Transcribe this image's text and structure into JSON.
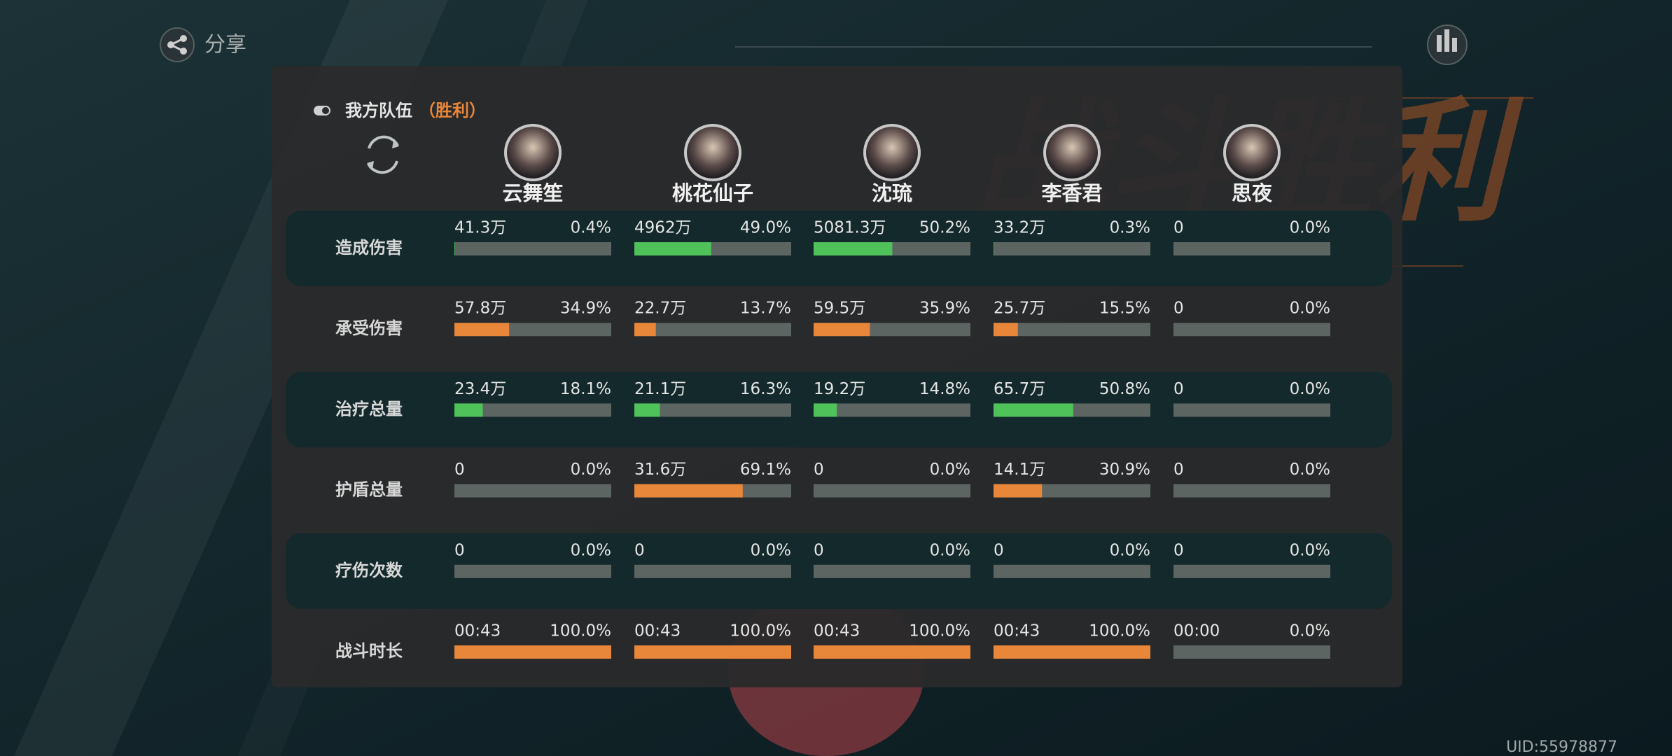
{
  "header": {
    "share": "分享",
    "uid": "UID:55978877",
    "background_title": "战斗胜利"
  },
  "team": {
    "title": "我方队伍",
    "result": "（胜利）"
  },
  "characters": [
    "云舞笙",
    "桃花仙子",
    "沈琉",
    "李香君",
    "思夜"
  ],
  "rows": [
    {
      "label": "造成伤害",
      "color": "#4fc35a",
      "cells": [
        {
          "value": "41.3万",
          "percent": 0.4,
          "percent_label": "0.4%"
        },
        {
          "value": "4962万",
          "percent": 49,
          "percent_label": "49.0%"
        },
        {
          "value": "5081.3万",
          "percent": 50.2,
          "percent_label": "50.2%"
        },
        {
          "value": "33.2万",
          "percent": 0.3,
          "percent_label": "0.3%"
        },
        {
          "value": "0",
          "percent": 0,
          "percent_label": "0.0%"
        }
      ]
    },
    {
      "label": "承受伤害",
      "color": "#e8863a",
      "cells": [
        {
          "value": "57.8万",
          "percent": 34.9,
          "percent_label": "34.9%"
        },
        {
          "value": "22.7万",
          "percent": 13.7,
          "percent_label": "13.7%"
        },
        {
          "value": "59.5万",
          "percent": 35.9,
          "percent_label": "35.9%"
        },
        {
          "value": "25.7万",
          "percent": 15.5,
          "percent_label": "15.5%"
        },
        {
          "value": "0",
          "percent": 0,
          "percent_label": "0.0%"
        }
      ]
    },
    {
      "label": "治疗总量",
      "color": "#4fc35a",
      "cells": [
        {
          "value": "23.4万",
          "percent": 18.1,
          "percent_label": "18.1%"
        },
        {
          "value": "21.1万",
          "percent": 16.3,
          "percent_label": "16.3%"
        },
        {
          "value": "19.2万",
          "percent": 14.8,
          "percent_label": "14.8%"
        },
        {
          "value": "65.7万",
          "percent": 50.8,
          "percent_label": "50.8%"
        },
        {
          "value": "0",
          "percent": 0,
          "percent_label": "0.0%"
        }
      ]
    },
    {
      "label": "护盾总量",
      "color": "#e8863a",
      "cells": [
        {
          "value": "0",
          "percent": 0,
          "percent_label": "0.0%"
        },
        {
          "value": "31.6万",
          "percent": 69.1,
          "percent_label": "69.1%"
        },
        {
          "value": "0",
          "percent": 0,
          "percent_label": "0.0%"
        },
        {
          "value": "14.1万",
          "percent": 30.9,
          "percent_label": "30.9%"
        },
        {
          "value": "0",
          "percent": 0,
          "percent_label": "0.0%"
        }
      ]
    },
    {
      "label": "疗伤次数",
      "color": "#4fc35a",
      "cells": [
        {
          "value": "0",
          "percent": 0,
          "percent_label": "0.0%"
        },
        {
          "value": "0",
          "percent": 0,
          "percent_label": "0.0%"
        },
        {
          "value": "0",
          "percent": 0,
          "percent_label": "0.0%"
        },
        {
          "value": "0",
          "percent": 0,
          "percent_label": "0.0%"
        },
        {
          "value": "0",
          "percent": 0,
          "percent_label": "0.0%"
        }
      ]
    },
    {
      "label": "战斗时长",
      "color": "#e8863a",
      "cells": [
        {
          "value": "00:43",
          "percent": 100,
          "percent_label": "100.0%"
        },
        {
          "value": "00:43",
          "percent": 100,
          "percent_label": "100.0%"
        },
        {
          "value": "00:43",
          "percent": 100,
          "percent_label": "100.0%"
        },
        {
          "value": "00:43",
          "percent": 100,
          "percent_label": "100.0%"
        },
        {
          "value": "00:00",
          "percent": 0,
          "percent_label": "0.0%"
        }
      ]
    }
  ]
}
